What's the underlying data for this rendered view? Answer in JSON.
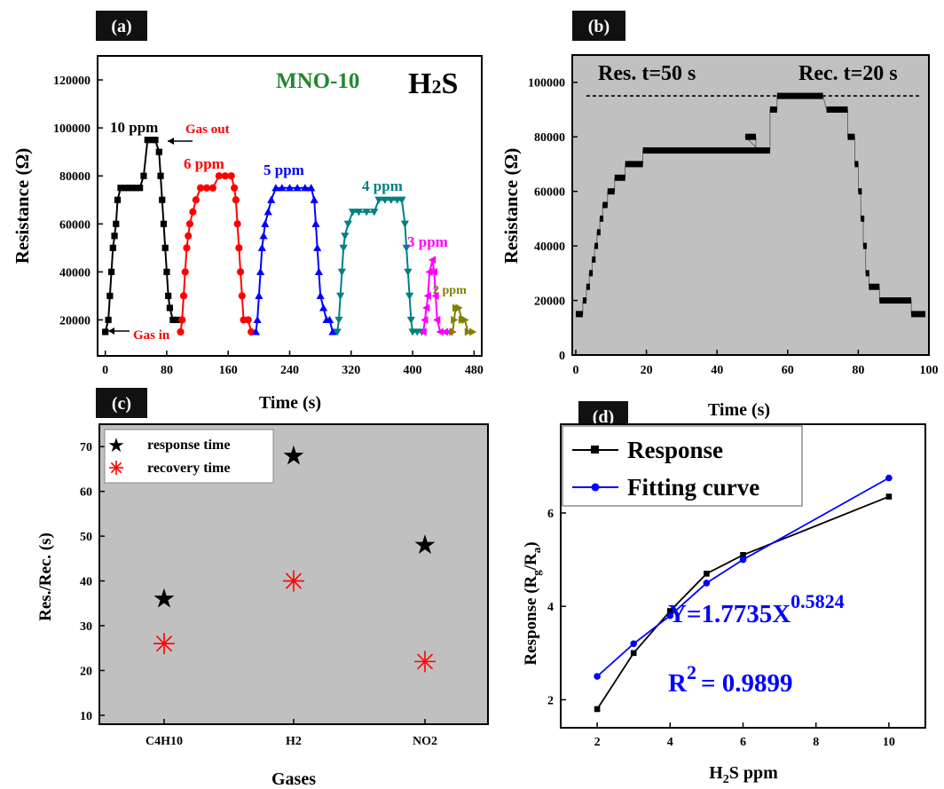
{
  "chart_data": [
    {
      "panel": "(a)",
      "type": "line",
      "title": "MNO-10",
      "gas_label": "H2S",
      "xlabel": "Time (s)",
      "ylabel": "Resistance (Ω)",
      "xlim": [
        -10,
        490
      ],
      "ylim": [
        5000,
        130000
      ],
      "xticks": [
        "0",
        "80",
        "160",
        "240",
        "320",
        "400",
        "480"
      ],
      "yticks": [
        "20000",
        "40000",
        "60000",
        "80000",
        "100000",
        "120000"
      ],
      "series": [
        {
          "name": "10 ppm",
          "color": "#000000",
          "marker": "square",
          "points": [
            [
              0,
              15000
            ],
            [
              4,
              20000
            ],
            [
              6,
              30000
            ],
            [
              8,
              40000
            ],
            [
              10,
              50000
            ],
            [
              12,
              55000
            ],
            [
              14,
              60000
            ],
            [
              16,
              70000
            ],
            [
              20,
              75000
            ],
            [
              25,
              75000
            ],
            [
              30,
              75000
            ],
            [
              35,
              75000
            ],
            [
              40,
              75000
            ],
            [
              45,
              75000
            ],
            [
              50,
              80000
            ],
            [
              55,
              95000
            ],
            [
              60,
              95000
            ],
            [
              65,
              95000
            ],
            [
              70,
              90000
            ],
            [
              72,
              80000
            ],
            [
              74,
              70000
            ],
            [
              76,
              60000
            ],
            [
              78,
              50000
            ],
            [
              80,
              40000
            ],
            [
              82,
              30000
            ],
            [
              84,
              25000
            ],
            [
              88,
              20000
            ],
            [
              94,
              20000
            ]
          ]
        },
        {
          "name": "6 ppm",
          "color": "#ff0000",
          "marker": "circle",
          "points": [
            [
              98,
              15000
            ],
            [
              100,
              20000
            ],
            [
              102,
              30000
            ],
            [
              104,
              40000
            ],
            [
              106,
              50000
            ],
            [
              108,
              55000
            ],
            [
              110,
              60000
            ],
            [
              114,
              65000
            ],
            [
              118,
              70000
            ],
            [
              124,
              75000
            ],
            [
              132,
              75000
            ],
            [
              140,
              75000
            ],
            [
              148,
              80000
            ],
            [
              156,
              80000
            ],
            [
              164,
              80000
            ],
            [
              168,
              75000
            ],
            [
              170,
              70000
            ],
            [
              172,
              60000
            ],
            [
              174,
              50000
            ],
            [
              176,
              40000
            ],
            [
              178,
              30000
            ],
            [
              180,
              20000
            ],
            [
              186,
              20000
            ],
            [
              190,
              15000
            ]
          ]
        },
        {
          "name": "5 ppm",
          "color": "#0000ff",
          "marker": "triangle-up",
          "points": [
            [
              196,
              15000
            ],
            [
              198,
              20000
            ],
            [
              200,
              30000
            ],
            [
              202,
              40000
            ],
            [
              204,
              50000
            ],
            [
              206,
              55000
            ],
            [
              208,
              60000
            ],
            [
              212,
              65000
            ],
            [
              216,
              70000
            ],
            [
              222,
              75000
            ],
            [
              230,
              75000
            ],
            [
              240,
              75000
            ],
            [
              250,
              75000
            ],
            [
              260,
              75000
            ],
            [
              268,
              75000
            ],
            [
              272,
              70000
            ],
            [
              274,
              60000
            ],
            [
              276,
              50000
            ],
            [
              278,
              40000
            ],
            [
              280,
              30000
            ],
            [
              284,
              25000
            ],
            [
              288,
              20000
            ],
            [
              292,
              20000
            ],
            [
              296,
              15000
            ]
          ]
        },
        {
          "name": "4 ppm",
          "color": "#008080",
          "marker": "triangle-down",
          "points": [
            [
              302,
              15000
            ],
            [
              304,
              20000
            ],
            [
              306,
              30000
            ],
            [
              308,
              40000
            ],
            [
              310,
              50000
            ],
            [
              312,
              55000
            ],
            [
              316,
              60000
            ],
            [
              322,
              65000
            ],
            [
              330,
              65000
            ],
            [
              340,
              65000
            ],
            [
              350,
              65000
            ],
            [
              356,
              70000
            ],
            [
              364,
              70000
            ],
            [
              372,
              70000
            ],
            [
              380,
              70000
            ],
            [
              386,
              70000
            ],
            [
              390,
              60000
            ],
            [
              392,
              50000
            ],
            [
              394,
              40000
            ],
            [
              396,
              30000
            ],
            [
              398,
              20000
            ],
            [
              400,
              15000
            ],
            [
              406,
              15000
            ],
            [
              412,
              15000
            ]
          ]
        },
        {
          "name": "3 ppm",
          "color": "#ff00ff",
          "marker": "triangle-left",
          "points": [
            [
              414,
              15000
            ],
            [
              416,
              20000
            ],
            [
              418,
              25000
            ],
            [
              420,
              30000
            ],
            [
              422,
              40000
            ],
            [
              426,
              45000
            ],
            [
              428,
              40000
            ],
            [
              430,
              30000
            ],
            [
              432,
              20000
            ],
            [
              436,
              15000
            ],
            [
              442,
              15000
            ],
            [
              448,
              15000
            ]
          ]
        },
        {
          "name": "2 ppm",
          "color": "#808000",
          "marker": "triangle-right",
          "points": [
            [
              452,
              15000
            ],
            [
              454,
              20000
            ],
            [
              456,
              25000
            ],
            [
              460,
              25000
            ],
            [
              464,
              20000
            ],
            [
              468,
              20000
            ],
            [
              472,
              15000
            ],
            [
              478,
              15000
            ]
          ]
        }
      ],
      "annotations": [
        "10 ppm",
        "6 ppm",
        "5 ppm",
        "4 ppm",
        "3 ppm",
        "2 ppm",
        "Gas in",
        "Gas out"
      ]
    },
    {
      "panel": "(b)",
      "type": "line",
      "xlabel": "Time (s)",
      "ylabel": "Resistance (Ω)",
      "xlim": [
        -1,
        100
      ],
      "ylim": [
        0,
        110000
      ],
      "xticks": [
        "0",
        "20",
        "40",
        "60",
        "80",
        "100"
      ],
      "yticks": [
        "0",
        "20000",
        "40000",
        "60000",
        "80000",
        "100000"
      ],
      "annotations": [
        "Res. t=50 s",
        "Rec. t=20 s"
      ],
      "reference_line": 95000,
      "steps": [
        [
          0,
          2,
          15000
        ],
        [
          2,
          3,
          20000
        ],
        [
          3,
          3.8,
          25000
        ],
        [
          3.8,
          4.6,
          30000
        ],
        [
          4.6,
          5.3,
          35000
        ],
        [
          5.3,
          6,
          40000
        ],
        [
          6,
          6.8,
          45000
        ],
        [
          6.8,
          7.6,
          50000
        ],
        [
          7.6,
          9,
          55000
        ],
        [
          9,
          11,
          60000
        ],
        [
          11,
          14,
          65000
        ],
        [
          14,
          19,
          70000
        ],
        [
          19,
          52,
          75000
        ],
        [
          48,
          51,
          80000
        ],
        [
          51,
          55,
          75000
        ],
        [
          55,
          57,
          90000
        ],
        [
          57,
          70,
          95000
        ],
        [
          71,
          77,
          90000
        ],
        [
          77,
          79,
          80000
        ],
        [
          79,
          80,
          70000
        ],
        [
          80,
          80.7,
          60000
        ],
        [
          80.7,
          81.4,
          50000
        ],
        [
          81.4,
          82.1,
          40000
        ],
        [
          82.1,
          83,
          30000
        ],
        [
          83,
          86,
          25000
        ],
        [
          86,
          95,
          20000
        ],
        [
          95,
          99,
          15000
        ]
      ]
    },
    {
      "panel": "(c)",
      "type": "scatter",
      "xlabel": "Gases",
      "ylabel": "Res./Rec. (s)",
      "categories": [
        "C4H10",
        "H2",
        "NO2"
      ],
      "ylim": [
        8,
        75
      ],
      "yticks": [
        "10",
        "20",
        "30",
        "40",
        "50",
        "60",
        "70"
      ],
      "series": [
        {
          "name": "response time",
          "color": "#000000",
          "marker": "star",
          "values": [
            36,
            68,
            48
          ]
        },
        {
          "name": "recovery time",
          "color": "#ff0000",
          "marker": "asterisk",
          "values": [
            26,
            40,
            22
          ]
        }
      ]
    },
    {
      "panel": "(d)",
      "type": "line",
      "xlabel": "H2S ppm",
      "ylabel": "Response (Rg/Ra)",
      "xlim": [
        1,
        11
      ],
      "ylim": [
        1.4,
        7.9
      ],
      "xticks": [
        "2",
        "4",
        "6",
        "8",
        "10"
      ],
      "yticks": [
        "2",
        "4",
        "6"
      ],
      "x": [
        2,
        3,
        4,
        5,
        6,
        10
      ],
      "series": [
        {
          "name": "Response",
          "color": "#000000",
          "marker": "square",
          "values": [
            1.8,
            3.0,
            3.9,
            4.7,
            5.1,
            6.35
          ]
        },
        {
          "name": "Fitting curve",
          "color": "#0000ff",
          "marker": "circle",
          "values": [
            2.5,
            3.2,
            3.8,
            4.5,
            5.0,
            6.75
          ]
        }
      ],
      "equation": {
        "base": "Y=1.7735X",
        "exp": "0.5824"
      },
      "r2": {
        "base": "R",
        "exp": "2",
        "value": "= 0.9899"
      }
    }
  ]
}
